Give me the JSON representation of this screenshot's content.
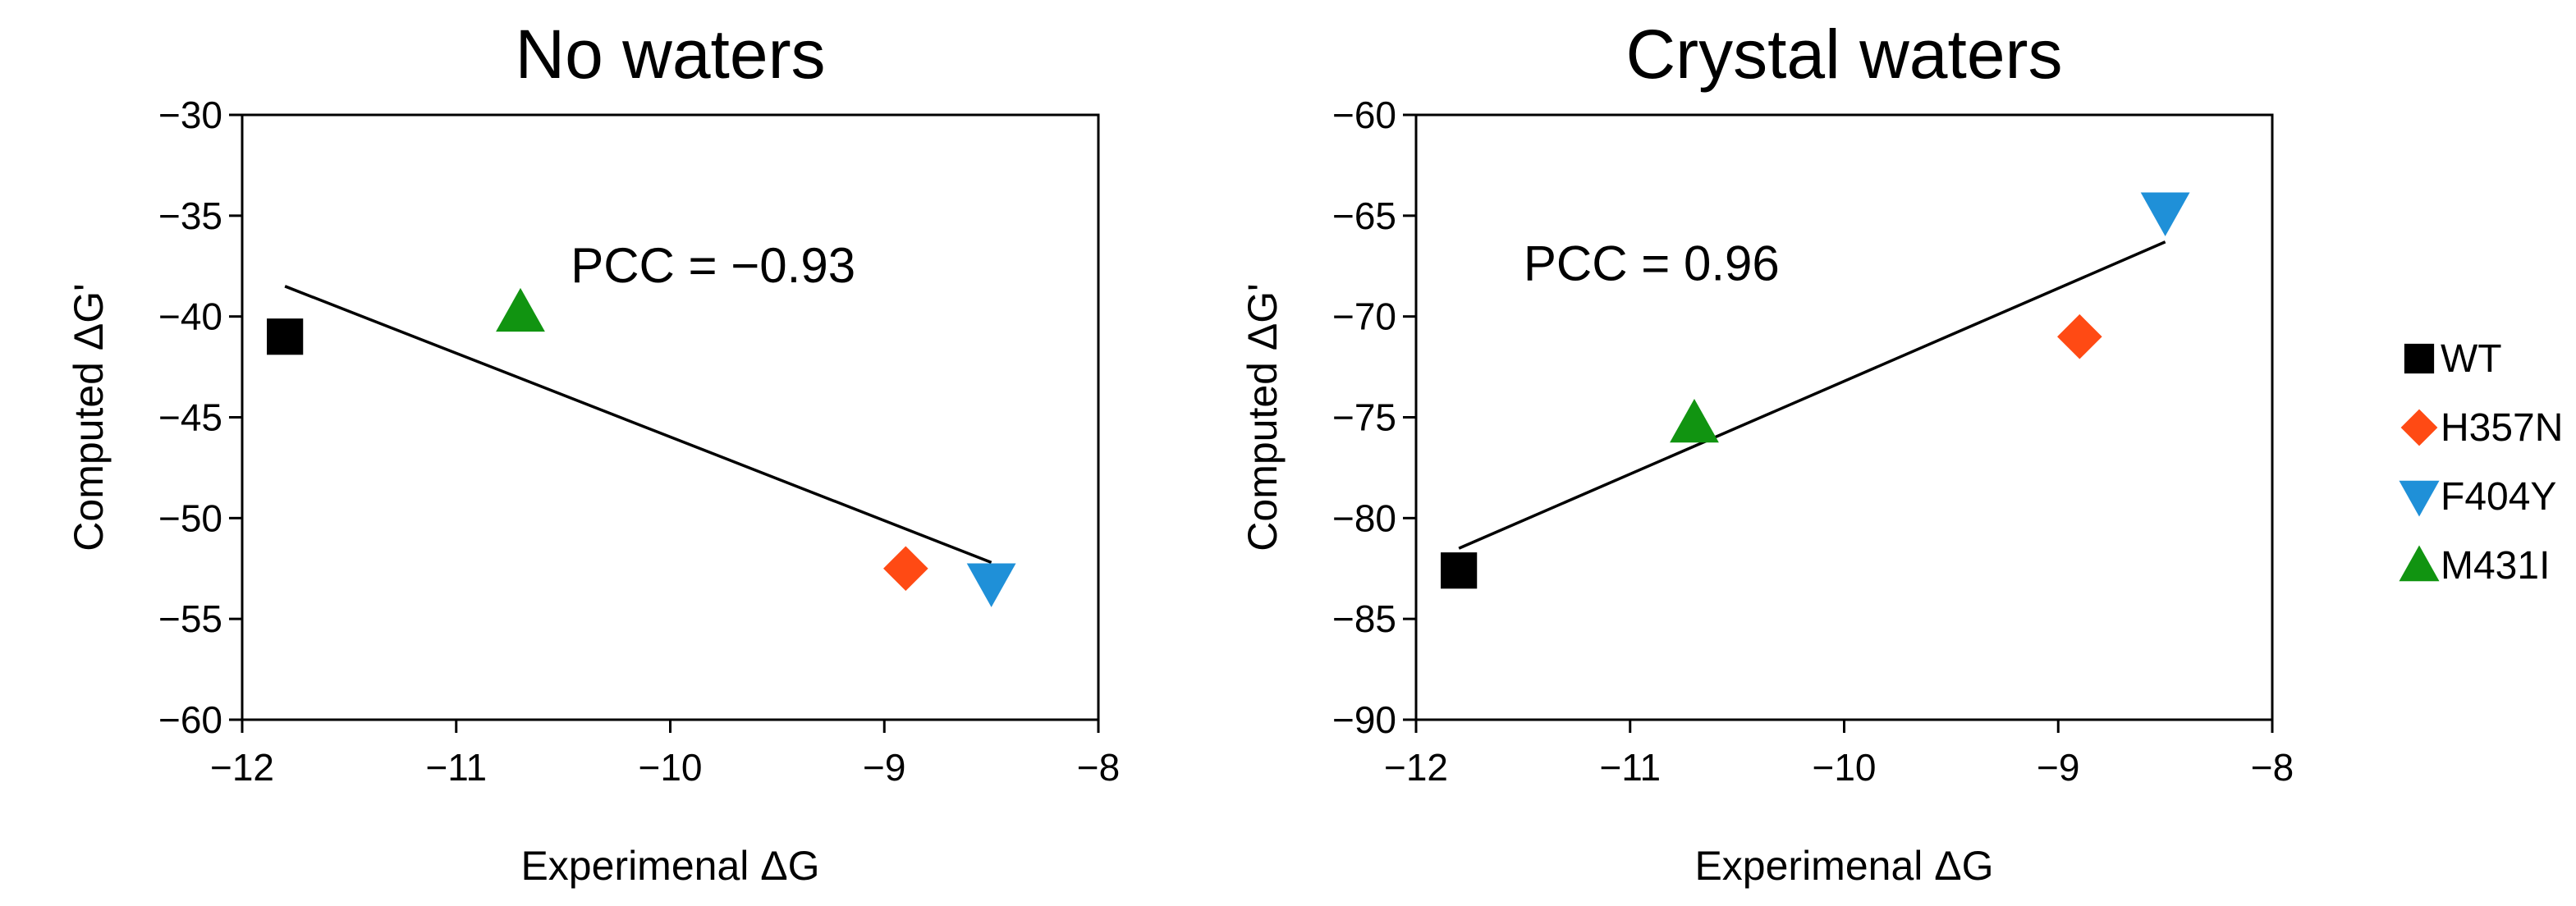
{
  "chart_data": [
    {
      "type": "scatter",
      "title": "No waters",
      "xlabel": "Experimenal ΔG",
      "ylabel": "Computed ΔG'",
      "xlim": [
        -12,
        -8
      ],
      "ylim": [
        -60,
        -30
      ],
      "xticks": [
        -12,
        -11,
        -10,
        -9,
        -8
      ],
      "yticks": [
        -60,
        -55,
        -50,
        -45,
        -40,
        -35,
        -30
      ],
      "xtick_labels": [
        "−12",
        "−11",
        "−10",
        "−9",
        "−8"
      ],
      "ytick_labels": [
        "−60",
        "−55",
        "−50",
        "−45",
        "−40",
        "−35",
        "−30"
      ],
      "annotation": "PCC = −0.93",
      "series": [
        {
          "name": "WT",
          "x": -11.8,
          "y": -41.0
        },
        {
          "name": "H357N",
          "x": -8.9,
          "y": -52.5
        },
        {
          "name": "F404Y",
          "x": -8.5,
          "y": -53.2
        },
        {
          "name": "M431I",
          "x": -10.7,
          "y": -39.8
        }
      ],
      "fit_line": {
        "x": [
          -11.8,
          -8.5
        ],
        "y": [
          -38.5,
          -52.2
        ]
      }
    },
    {
      "type": "scatter",
      "title": "Crystal waters",
      "xlabel": "Experimenal ΔG",
      "ylabel": "Computed ΔG'",
      "xlim": [
        -12,
        -8
      ],
      "ylim": [
        -90,
        -60
      ],
      "xticks": [
        -12,
        -11,
        -10,
        -9,
        -8
      ],
      "yticks": [
        -90,
        -85,
        -80,
        -75,
        -70,
        -65,
        -60
      ],
      "xtick_labels": [
        "−12",
        "−11",
        "−10",
        "−9",
        "−8"
      ],
      "ytick_labels": [
        "−90",
        "−85",
        "−80",
        "−75",
        "−70",
        "−65",
        "−60"
      ],
      "annotation": "PCC = 0.96",
      "series": [
        {
          "name": "WT",
          "x": -11.8,
          "y": -82.6
        },
        {
          "name": "H357N",
          "x": -8.9,
          "y": -71.0
        },
        {
          "name": "F404Y",
          "x": -8.5,
          "y": -64.8
        },
        {
          "name": "M431I",
          "x": -10.7,
          "y": -75.3
        }
      ],
      "fit_line": {
        "x": [
          -11.8,
          -8.5
        ],
        "y": [
          -81.5,
          -66.3
        ]
      }
    }
  ],
  "legend": [
    {
      "name": "WT",
      "marker": "square",
      "color": "#000000"
    },
    {
      "name": "H357N",
      "marker": "diamond",
      "color": "#ff4a14"
    },
    {
      "name": "F404Y",
      "marker": "triangle-down",
      "color": "#1f90d8"
    },
    {
      "name": "M431I",
      "marker": "triangle-up",
      "color": "#119411"
    }
  ]
}
